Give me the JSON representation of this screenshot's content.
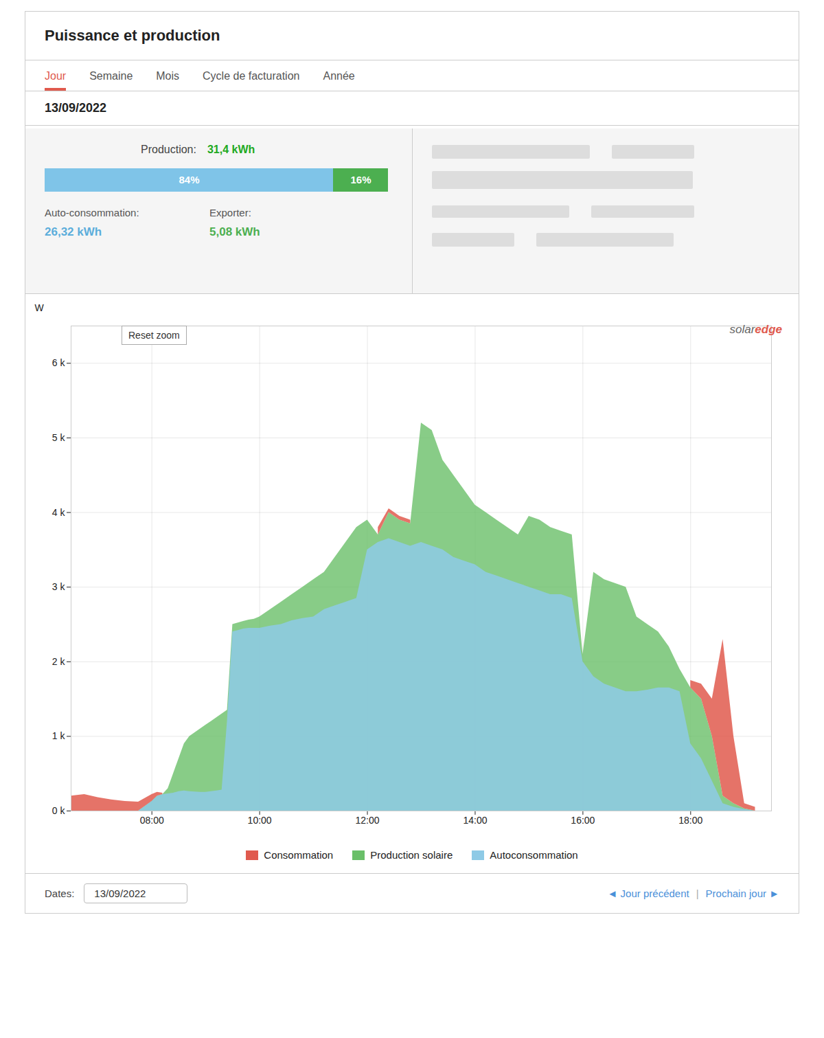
{
  "chart_data": [
    {
      "type": "area",
      "title": "Puissance et production",
      "ylabel": "W",
      "x": [
        6.5,
        6.75,
        7.0,
        7.25,
        7.5,
        7.75,
        8.0,
        8.1,
        8.2,
        8.3,
        8.4,
        8.5,
        8.6,
        8.7,
        8.8,
        8.9,
        9.0,
        9.1,
        9.2,
        9.3,
        9.4,
        9.5,
        9.6,
        9.7,
        9.8,
        9.9,
        10.0,
        10.2,
        10.4,
        10.6,
        10.8,
        11.0,
        11.2,
        11.4,
        11.6,
        11.8,
        12.0,
        12.2,
        12.4,
        12.6,
        12.8,
        13.0,
        13.2,
        13.4,
        13.5,
        13.6,
        13.8,
        14.0,
        14.2,
        14.4,
        14.6,
        14.8,
        15.0,
        15.2,
        15.4,
        15.6,
        15.8,
        16.0,
        16.2,
        16.4,
        16.6,
        16.8,
        17.0,
        17.2,
        17.4,
        17.6,
        17.8,
        18.0,
        18.2,
        18.4,
        18.6,
        18.8,
        19.0,
        19.2
      ],
      "series": [
        {
          "name": "Consommation",
          "color": "#e05a4e",
          "values": [
            200,
            220,
            180,
            150,
            130,
            120,
            220,
            250,
            240,
            230,
            240,
            260,
            270,
            260,
            255,
            250,
            250,
            260,
            270,
            280,
            1200,
            2500,
            2520,
            2540,
            2550,
            2550,
            2550,
            2600,
            2650,
            2700,
            2750,
            2800,
            2900,
            2950,
            3000,
            3000,
            3800,
            3800,
            4050,
            3950,
            3900,
            3700,
            3650,
            3600,
            3550,
            3500,
            3400,
            3350,
            3300,
            3250,
            3200,
            3150,
            3100,
            3050,
            3000,
            2960,
            2920,
            2060,
            1850,
            1750,
            1700,
            1650,
            1700,
            1720,
            1750,
            1750,
            1700,
            1750,
            1700,
            1500,
            2300,
            1000,
            100,
            50
          ]
        },
        {
          "name": "Production solaire",
          "color": "#6abf69",
          "values": [
            0,
            0,
            0,
            0,
            0,
            0,
            130,
            200,
            220,
            300,
            500,
            700,
            900,
            1000,
            1050,
            1100,
            1150,
            1200,
            1250,
            1300,
            1350,
            2500,
            2520,
            2540,
            2560,
            2570,
            2600,
            2700,
            2800,
            2900,
            3000,
            3100,
            3200,
            3400,
            3600,
            3800,
            3900,
            3700,
            4000,
            3900,
            3850,
            5200,
            5100,
            4700,
            4600,
            4500,
            4300,
            4100,
            4000,
            3900,
            3800,
            3700,
            3950,
            3900,
            3800,
            3750,
            3700,
            2100,
            3200,
            3100,
            3050,
            3000,
            2600,
            2500,
            2400,
            2200,
            1900,
            1650,
            1500,
            1000,
            200,
            100,
            30,
            0
          ]
        },
        {
          "name": "Autoconsommation",
          "color": "#8ecae6",
          "values": [
            0,
            0,
            0,
            0,
            0,
            0,
            130,
            200,
            220,
            230,
            240,
            260,
            270,
            260,
            255,
            250,
            250,
            260,
            270,
            280,
            1200,
            2400,
            2420,
            2440,
            2450,
            2450,
            2450,
            2480,
            2500,
            2550,
            2580,
            2600,
            2700,
            2750,
            2800,
            2850,
            3500,
            3600,
            3650,
            3600,
            3550,
            3600,
            3550,
            3500,
            3450,
            3400,
            3350,
            3300,
            3200,
            3150,
            3100,
            3050,
            3000,
            2950,
            2900,
            2900,
            2850,
            2000,
            1800,
            1700,
            1650,
            1600,
            1600,
            1620,
            1650,
            1650,
            1600,
            900,
            700,
            400,
            100,
            50,
            20,
            0
          ]
        }
      ],
      "xlim": [
        6.5,
        19.5
      ],
      "xticks": [
        {
          "value": 8,
          "label": "08:00"
        },
        {
          "value": 10,
          "label": "10:00"
        },
        {
          "value": 12,
          "label": "12:00"
        },
        {
          "value": 14,
          "label": "14:00"
        },
        {
          "value": 16,
          "label": "16:00"
        },
        {
          "value": 18,
          "label": "18:00"
        }
      ],
      "ylim": [
        0,
        6500
      ],
      "yticks": [
        {
          "value": 0,
          "label": "0 k"
        },
        {
          "value": 1000,
          "label": "1 k"
        },
        {
          "value": 2000,
          "label": "2 k"
        },
        {
          "value": 3000,
          "label": "3 k"
        },
        {
          "value": 4000,
          "label": "4 k"
        },
        {
          "value": 5000,
          "label": "5 k"
        },
        {
          "value": 6000,
          "label": "6 k"
        }
      ],
      "grid": true,
      "legend": "bottom",
      "annotations": [
        {
          "text": "Jour",
          "color": "#e05a4e"
        },
        {
          "text": "Semaine"
        },
        {
          "text": "Mois"
        },
        {
          "text": "Cycle de facturation"
        },
        {
          "text": "Année"
        },
        {
          "text": "13/09/2022"
        },
        {
          "text": "Production:"
        },
        {
          "text": "31,4 kWh",
          "color": "#22aa22"
        },
        {
          "text": "Auto-consommation:"
        },
        {
          "text": "Exporter:"
        },
        {
          "text": "26,32 kWh",
          "color": "#5baddb"
        },
        {
          "text": "5,08 kWh",
          "color": "#4caf50"
        },
        {
          "text": "Reset zoom"
        },
        {
          "text": "solar"
        },
        {
          "text": "edge",
          "color": "#e05a4e"
        },
        {
          "text": "Dates:"
        },
        {
          "text": "13/09/2022"
        },
        {
          "text": "◄ Jour précédent",
          "color": "#4a90d9"
        },
        {
          "text": "|"
        },
        {
          "text": "Prochain jour ►",
          "color": "#4a90d9"
        }
      ]
    },
    {
      "type": "bar",
      "orientation": "horizontal",
      "stacked": true,
      "series": [
        {
          "color": "#7fc4e8",
          "values": [
            84
          ],
          "value_labels": [
            "84%"
          ]
        },
        {
          "color": "#4caf50",
          "values": [
            16
          ],
          "value_labels": [
            "16%"
          ]
        }
      ],
      "xlim": [
        0,
        100
      ],
      "data_labels": true,
      "tick_labels": false
    }
  ]
}
